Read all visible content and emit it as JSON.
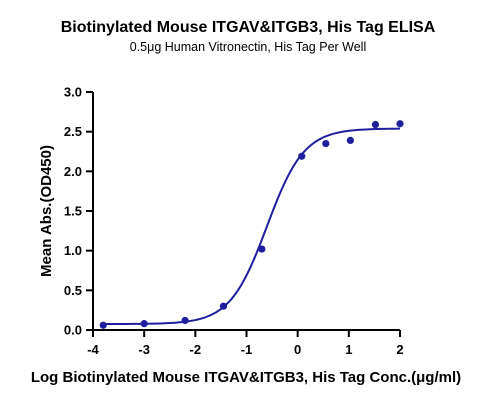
{
  "chart_data": {
    "type": "scatter",
    "title": "Biotinylated Mouse ITGAV&ITGB3, His Tag ELISA",
    "subtitle": "0.5μg Human Vitronectin, His Tag Per Well",
    "xlabel": "Log Biotinylated Mouse ITGAV&ITGB3, His Tag Conc.(μg/ml)",
    "ylabel": "Mean Abs.(OD450)",
    "xlim": [
      -4,
      2
    ],
    "ylim": [
      0,
      3.0
    ],
    "xticks": [
      "-4",
      "-3",
      "-2",
      "-1",
      "0",
      "1",
      "2"
    ],
    "yticks": [
      "0.0",
      "0.5",
      "1.0",
      "1.5",
      "2.0",
      "2.5",
      "3.0"
    ],
    "grid": false,
    "color": "#1f1f9e",
    "series": [
      {
        "points": [
          {
            "x": -3.8,
            "y": 0.06
          },
          {
            "x": -3.0,
            "y": 0.08
          },
          {
            "x": -2.2,
            "y": 0.12
          },
          {
            "x": -1.45,
            "y": 0.3
          },
          {
            "x": -0.7,
            "y": 1.02
          },
          {
            "x": 0.08,
            "y": 2.19
          },
          {
            "x": 0.55,
            "y": 2.35
          },
          {
            "x": 1.03,
            "y": 2.39
          },
          {
            "x": 1.52,
            "y": 2.59
          },
          {
            "x": 2.0,
            "y": 2.6
          }
        ],
        "fit": {
          "bottom": 0.075,
          "top": 2.54,
          "log_ec50": -0.6,
          "hill_slope": 1.2,
          "x_range": [
            -3.8,
            2.0
          ]
        }
      }
    ]
  }
}
